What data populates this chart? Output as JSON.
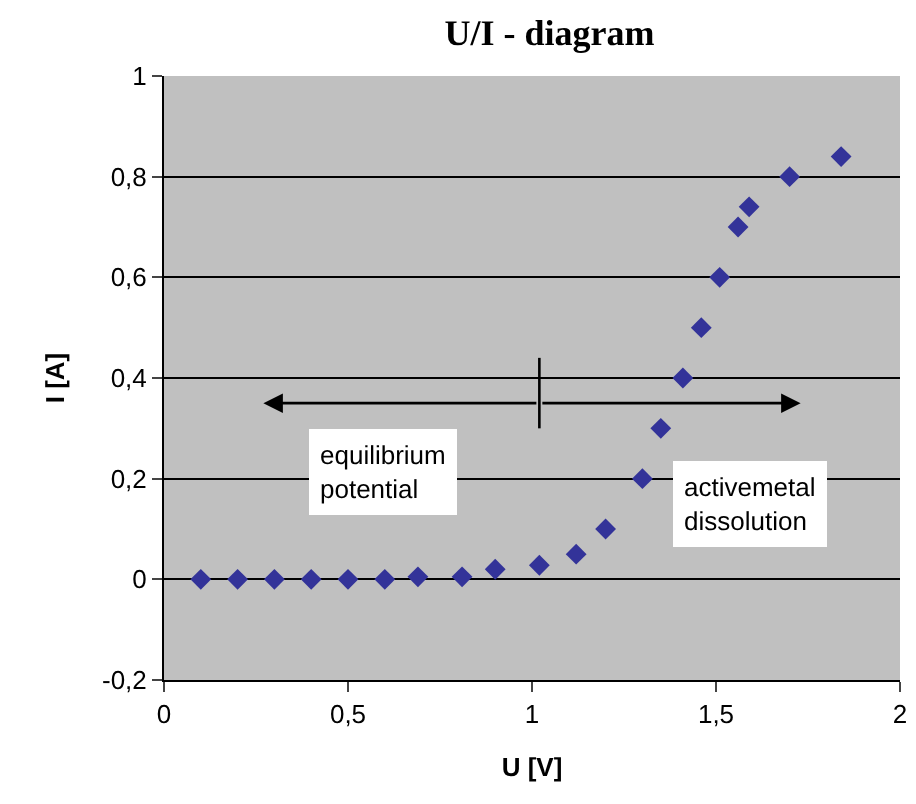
{
  "chart_data": {
    "type": "scatter",
    "title": "U/I - diagram",
    "xlabel": "U [V]",
    "ylabel": "I [A]",
    "x": [
      0.1,
      0.2,
      0.3,
      0.4,
      0.5,
      0.6,
      0.69,
      0.81,
      0.9,
      1.02,
      1.12,
      1.2,
      1.3,
      1.35,
      1.41,
      1.46,
      1.51,
      1.56,
      1.59,
      1.7,
      1.84
    ],
    "series": [
      {
        "color": "#333399",
        "values": [
          0,
          0,
          0,
          0,
          0,
          0,
          0.005,
          0.005,
          0.02,
          0.028,
          0.05,
          0.1,
          0.2,
          0.3,
          0.4,
          0.5,
          0.6,
          0.7,
          0.74,
          0.8,
          0.84
        ]
      }
    ],
    "xlim": [
      0,
      2
    ],
    "xticks": [
      0,
      {
        "value": 0.5,
        "label": "0,5"
      },
      1,
      {
        "value": 1.5,
        "label": "1,5"
      },
      2
    ],
    "ylim": [
      -0.2,
      1
    ],
    "yticks": [
      {
        "value": -0.2,
        "label": "-0,2"
      },
      0,
      {
        "value": 0.2,
        "label": "0,2"
      },
      {
        "value": 0.4,
        "label": "0,4"
      },
      {
        "value": 0.6,
        "label": "0,6"
      },
      {
        "value": 0.8,
        "label": "0,8"
      },
      1
    ],
    "ref_lines": [
      {
        "axis": "x",
        "value": 1.02,
        "color": "#000000"
      }
    ],
    "grid": "y",
    "legend": false,
    "marker": "diamond",
    "annotations": [
      "equilibrium\npotential",
      "activemetal\ndissolution"
    ]
  }
}
